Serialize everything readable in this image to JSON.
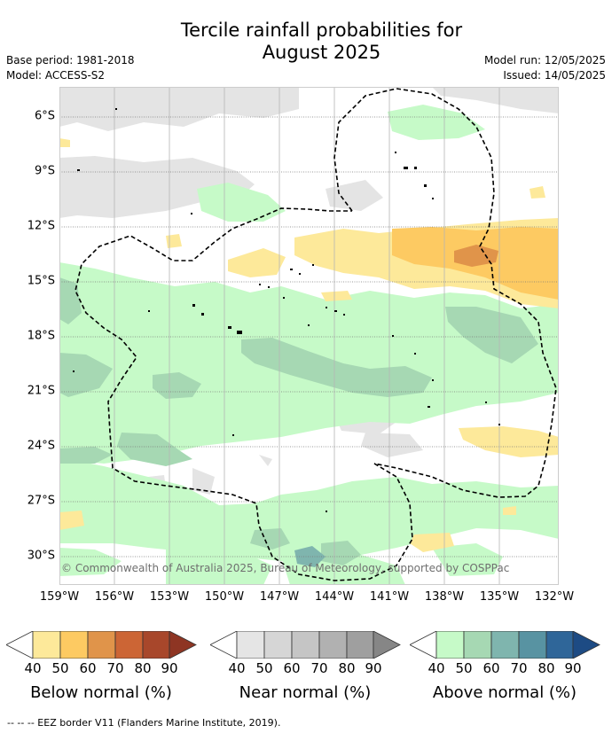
{
  "title": "Tercile rainfall probabilities for\nAugust 2025",
  "meta_left": {
    "base_period": "Base period: 1981-2018",
    "model": "Model: ACCESS-S2"
  },
  "meta_right": {
    "model_run": "Model run: 12/05/2025",
    "issued": "Issued: 14/05/2025"
  },
  "map": {
    "latitude_labels": [
      "6°S",
      "9°S",
      "12°S",
      "15°S",
      "18°S",
      "21°S",
      "24°S",
      "27°S",
      "30°S"
    ],
    "longitude_labels": [
      "159°W",
      "156°W",
      "153°W",
      "150°W",
      "147°W",
      "144°W",
      "141°W",
      "138°W",
      "135°W",
      "132°W"
    ],
    "copyright": "© Commonwealth of Australia 2025, Bureau of Meteorology, supported by COSPPac"
  },
  "legends": [
    {
      "caption": "Below normal (%)",
      "ticks": [
        "40",
        "50",
        "60",
        "70",
        "80",
        "90"
      ],
      "colors": [
        "#ffffff",
        "#fde99a",
        "#fdca62",
        "#e0944a",
        "#cc6535",
        "#a8472b",
        "#8e3523"
      ]
    },
    {
      "caption": "Near normal (%)",
      "ticks": [
        "40",
        "50",
        "60",
        "70",
        "80",
        "90"
      ],
      "colors": [
        "#ffffff",
        "#e5e5e5",
        "#d6d6d6",
        "#c5c5c5",
        "#b1b1b1",
        "#9f9f9f",
        "#868686"
      ]
    },
    {
      "caption": "Above normal (%)",
      "ticks": [
        "40",
        "50",
        "60",
        "70",
        "80",
        "90"
      ],
      "colors": [
        "#ffffff",
        "#c6fac8",
        "#a6d8b3",
        "#7fb5ae",
        "#5893a2",
        "#2f6699",
        "#1d4b84"
      ]
    }
  ],
  "footnote": "--  --  -- EEZ border V11 (Flanders Marine Institute, 2019)."
}
